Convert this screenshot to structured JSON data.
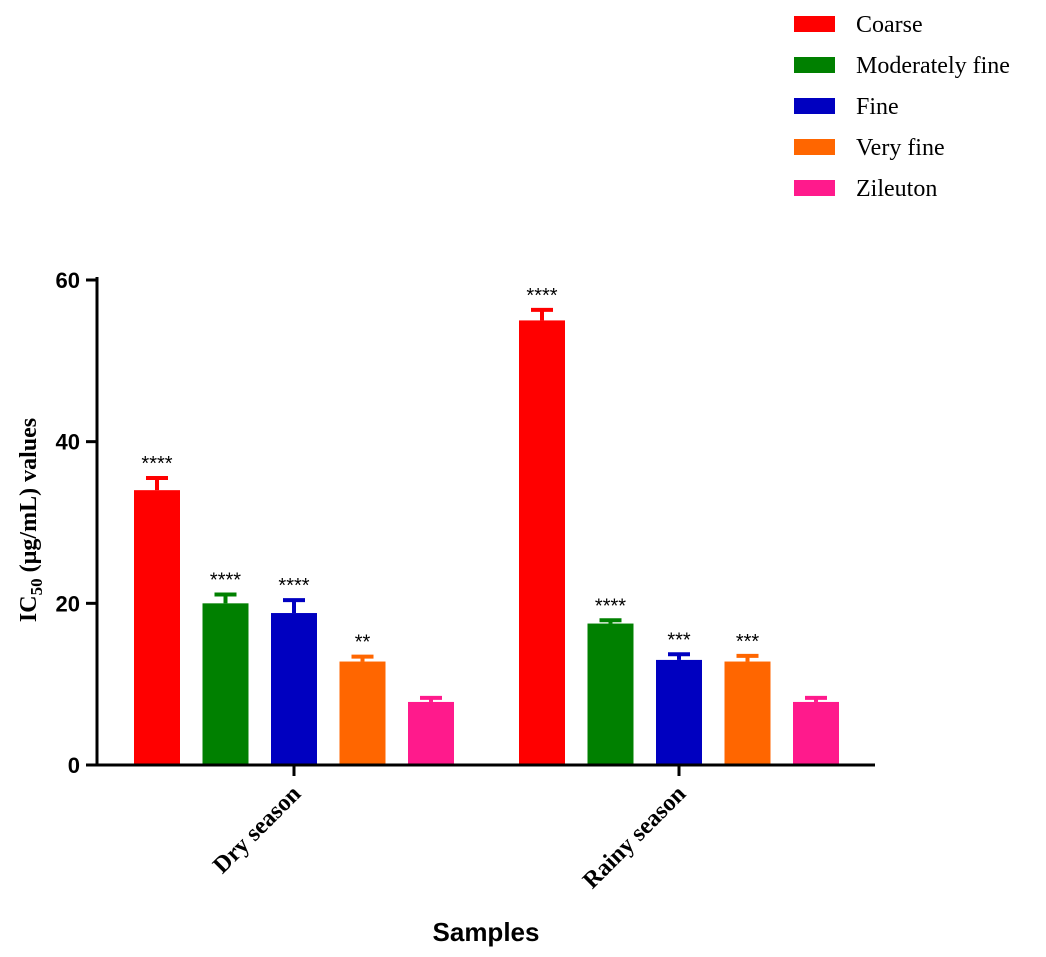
{
  "chart_data": {
    "type": "bar",
    "title": "",
    "xlabel": "Samples",
    "ylabel": {
      "prefix": "IC",
      "subscript": "50",
      "suffix": " (µg/mL) values"
    },
    "categories": [
      "Dry season",
      "Rainy season"
    ],
    "ylim": [
      0,
      60
    ],
    "yticks": [
      0,
      20,
      40,
      60
    ],
    "grid": false,
    "legend_position": "top-right",
    "series": [
      {
        "name": "Coarse",
        "color": "#ff0000",
        "values": [
          34.0,
          55.0
        ],
        "errors": [
          1.5,
          1.3
        ],
        "significance": [
          "****",
          "****"
        ]
      },
      {
        "name": "Moderately fine",
        "color": "#008000",
        "values": [
          20.0,
          17.5
        ],
        "errors": [
          1.1,
          0.4
        ],
        "significance": [
          "****",
          "****"
        ]
      },
      {
        "name": "Fine",
        "color": "#0000c0",
        "values": [
          18.8,
          13.0
        ],
        "errors": [
          1.6,
          0.7
        ],
        "significance": [
          "****",
          "***"
        ]
      },
      {
        "name": "Very fine",
        "color": "#ff6600",
        "values": [
          12.8,
          12.8
        ],
        "errors": [
          0.6,
          0.7
        ],
        "significance": [
          "**",
          "***"
        ]
      },
      {
        "name": "Zileuton",
        "color": "#ff1a8c",
        "values": [
          7.8,
          7.8
        ],
        "errors": [
          0.5,
          0.5
        ],
        "significance": [
          "",
          ""
        ]
      }
    ]
  }
}
